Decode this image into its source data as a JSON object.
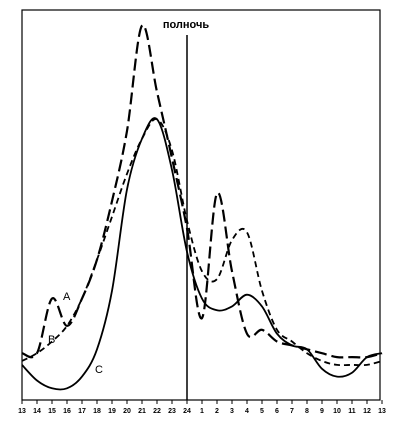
{
  "chart_data": {
    "type": "line",
    "annotation": "полночь",
    "categories": [
      "13",
      "14",
      "15",
      "16",
      "17",
      "18",
      "19",
      "20",
      "21",
      "22",
      "23",
      "24",
      "1",
      "2",
      "3",
      "4",
      "5",
      "6",
      "7",
      "8",
      "9",
      "10",
      "11",
      "12",
      "13"
    ],
    "ylim": [
      0,
      100
    ],
    "series": [
      {
        "name": "A",
        "color": "#000000",
        "values": [
          12,
          12,
          26,
          19,
          26,
          36,
          51,
          69,
          96,
          79,
          62,
          44,
          21,
          53,
          33,
          17,
          18,
          15,
          14,
          13,
          12,
          11,
          11,
          11,
          12
        ]
      },
      {
        "name": "B",
        "color": "#000000",
        "values": [
          10,
          12,
          15,
          19,
          26,
          36,
          47,
          58,
          67,
          72,
          64,
          46,
          33,
          31,
          41,
          43,
          28,
          18,
          15,
          12,
          10,
          9,
          9,
          9,
          10
        ]
      },
      {
        "name": "C",
        "color": "#000000",
        "values": [
          9,
          5,
          3,
          3,
          6,
          13,
          28,
          54,
          67,
          72,
          59,
          38,
          26,
          23,
          24,
          27,
          24,
          17,
          14,
          13,
          8,
          6,
          7,
          11,
          12
        ]
      }
    ]
  }
}
